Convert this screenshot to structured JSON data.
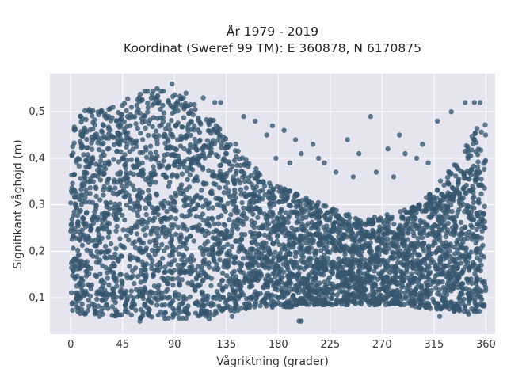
{
  "chart_data": {
    "type": "scatter",
    "title": "År 1979 - 2019",
    "subtitle": "Koordinat (Sweref 99 TM): E 360878, N 6170875",
    "xlabel": "Vågriktning (grader)",
    "ylabel": "Signifikant våghöjd (m)",
    "xlim": [
      -18,
      368
    ],
    "ylim": [
      0.022,
      0.582
    ],
    "xticks": [
      0,
      45,
      90,
      135,
      180,
      225,
      270,
      315,
      360
    ],
    "xtick_labels": [
      "0",
      "45",
      "90",
      "135",
      "180",
      "225",
      "270",
      "315",
      "360"
    ],
    "yticks": [
      0.1,
      0.2,
      0.3,
      0.4,
      0.5
    ],
    "ytick_labels": [
      "0,1",
      "0,2",
      "0,3",
      "0,4",
      "0,5"
    ],
    "grid": true,
    "marker_color": "#34566e",
    "background_color": "#e5e5ef",
    "envelope": {
      "x": [
        0,
        10,
        20,
        30,
        40,
        50,
        60,
        70,
        80,
        90,
        100,
        110,
        120,
        130,
        140,
        150,
        160,
        170,
        180,
        190,
        200,
        210,
        220,
        230,
        240,
        250,
        260,
        270,
        280,
        290,
        300,
        310,
        320,
        330,
        340,
        350,
        360
      ],
      "upper": [
        0.49,
        0.5,
        0.51,
        0.52,
        0.52,
        0.53,
        0.54,
        0.55,
        0.55,
        0.54,
        0.53,
        0.51,
        0.49,
        0.47,
        0.44,
        0.41,
        0.38,
        0.36,
        0.34,
        0.33,
        0.32,
        0.31,
        0.3,
        0.29,
        0.28,
        0.27,
        0.27,
        0.28,
        0.28,
        0.29,
        0.3,
        0.32,
        0.35,
        0.38,
        0.42,
        0.46,
        0.48
      ],
      "lower": [
        0.07,
        0.065,
        0.065,
        0.065,
        0.06,
        0.06,
        0.055,
        0.055,
        0.055,
        0.055,
        0.055,
        0.06,
        0.06,
        0.065,
        0.07,
        0.075,
        0.075,
        0.08,
        0.08,
        0.08,
        0.085,
        0.085,
        0.085,
        0.085,
        0.085,
        0.085,
        0.085,
        0.085,
        0.085,
        0.08,
        0.08,
        0.075,
        0.075,
        0.07,
        0.07,
        0.07,
        0.07
      ]
    },
    "outliers": [
      [
        88,
        0.56
      ],
      [
        75,
        0.55
      ],
      [
        100,
        0.54
      ],
      [
        115,
        0.53
      ],
      [
        125,
        0.52
      ],
      [
        130,
        0.52
      ],
      [
        150,
        0.49
      ],
      [
        160,
        0.48
      ],
      [
        175,
        0.47
      ],
      [
        185,
        0.46
      ],
      [
        170,
        0.45
      ],
      [
        195,
        0.44
      ],
      [
        210,
        0.43
      ],
      [
        240,
        0.44
      ],
      [
        260,
        0.49
      ],
      [
        285,
        0.45
      ],
      [
        305,
        0.43
      ],
      [
        318,
        0.48
      ],
      [
        330,
        0.5
      ],
      [
        342,
        0.52
      ],
      [
        350,
        0.52
      ],
      [
        355,
        0.52
      ],
      [
        200,
        0.41
      ],
      [
        215,
        0.4
      ],
      [
        220,
        0.39
      ],
      [
        250,
        0.41
      ],
      [
        275,
        0.42
      ],
      [
        290,
        0.41
      ],
      [
        300,
        0.4
      ],
      [
        310,
        0.39
      ],
      [
        230,
        0.37
      ],
      [
        245,
        0.36
      ],
      [
        265,
        0.37
      ],
      [
        280,
        0.36
      ],
      [
        190,
        0.39
      ],
      [
        178,
        0.4
      ],
      [
        200,
        0.05
      ],
      [
        198,
        0.05
      ],
      [
        140,
        0.06
      ],
      [
        120,
        0.055
      ],
      [
        60,
        0.05
      ],
      [
        25,
        0.06
      ],
      [
        320,
        0.06
      ],
      [
        345,
        0.065
      ]
    ]
  }
}
